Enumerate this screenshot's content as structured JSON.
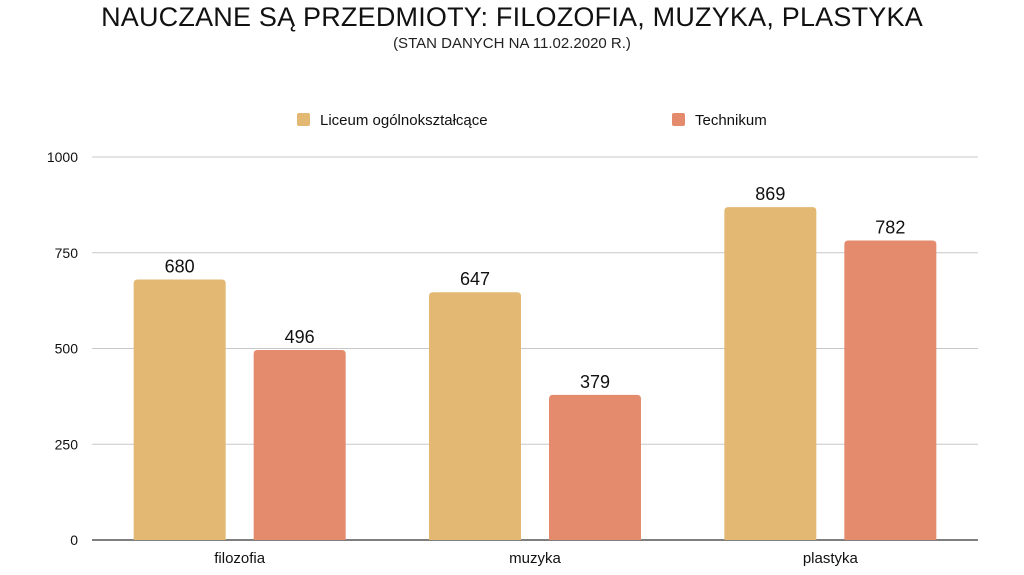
{
  "title": "NAUCZANE SĄ PRZEDMIOTY: FILOZOFIA, MUZYKA, PLASTYKA",
  "subtitle": "(STAN DANYCH NA 11.02.2020 R.)",
  "colors": {
    "series_1": "#e3b872",
    "series_2": "#e38b6c",
    "grid": "#c8c8c8",
    "axis": "#333333",
    "text": "#111111"
  },
  "chart_data": {
    "type": "bar",
    "categories": [
      "filozofia",
      "muzyka",
      "plastyka"
    ],
    "series": [
      {
        "name": "Liceum ogólnokształcące",
        "values": [
          680,
          647,
          869
        ]
      },
      {
        "name": "Technikum",
        "values": [
          496,
          379,
          782
        ]
      }
    ],
    "ylim": [
      0,
      1000
    ],
    "yticks": [
      0,
      250,
      500,
      750,
      1000
    ],
    "grid": true,
    "legend": "top-center",
    "data_labels": true
  }
}
